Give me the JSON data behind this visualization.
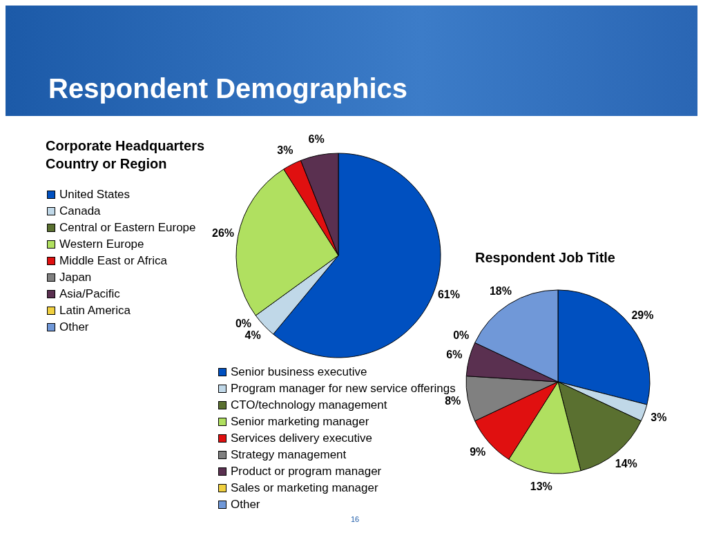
{
  "chart_data": [
    {
      "type": "pie",
      "title": "Corporate Headquarters Country or Region",
      "legend": "left",
      "annotations": [
        "Respondent Demographics",
        "16"
      ],
      "categories": [
        "United States",
        "Canada",
        "Central or Eastern Europe",
        "Western Europe",
        "Middle East or Africa",
        "Japan",
        "Asia/Pacific",
        "Latin America",
        "Other"
      ],
      "values": [
        61,
        4,
        0,
        26,
        3,
        0,
        6,
        0,
        0
      ],
      "value_labels": [
        "61%",
        "4%",
        "0%",
        "26%",
        "3%",
        null,
        "6%",
        null,
        null
      ],
      "colors": [
        "#0050c0",
        "#c0d8e8",
        "#5a7030",
        "#b0e060",
        "#e01010",
        "#808080",
        "#5a3050",
        "#f0d040",
        "#7098d8"
      ]
    },
    {
      "type": "pie",
      "title": "Respondent Job Title",
      "legend": "bottom left",
      "categories": [
        "Senior business executive",
        "Program manager for new service offerings",
        "CTO/technology management",
        "Senior marketing manager",
        "Services delivery executive",
        "Strategy management",
        "Product or program manager",
        "Sales or marketing manager",
        "Other"
      ],
      "values": [
        29,
        3,
        14,
        13,
        9,
        8,
        6,
        0,
        18
      ],
      "value_labels": [
        "29%",
        "3%",
        "14%",
        "13%",
        "9%",
        "8%",
        "6%",
        "0%",
        "18%"
      ],
      "colors": [
        "#0050c0",
        "#c0d8e8",
        "#5a7030",
        "#b0e060",
        "#e01010",
        "#808080",
        "#5a3050",
        "#f0d040",
        "#7098d8"
      ]
    }
  ]
}
